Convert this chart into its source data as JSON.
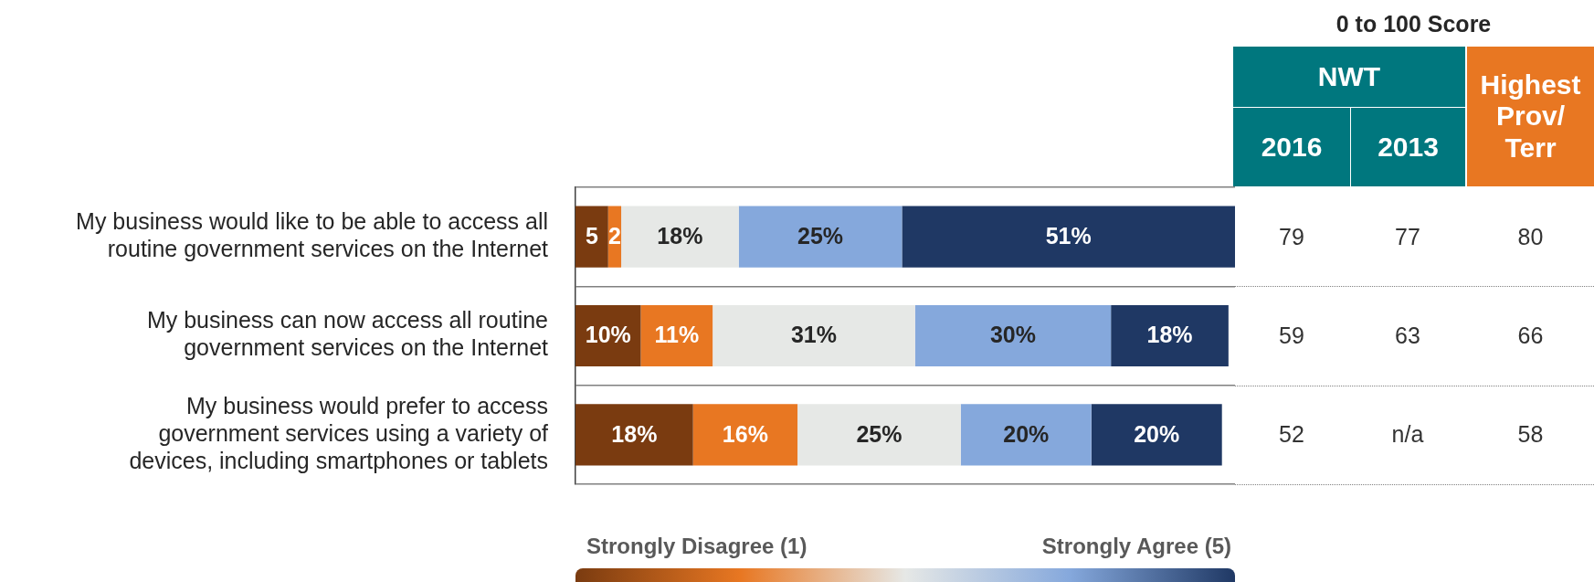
{
  "chart_data": [
    {
      "type": "bar",
      "orientation": "horizontal",
      "stacked": true,
      "legend": false,
      "grid": "y",
      "tick_labels": "y",
      "xlim": [
        0,
        101
      ],
      "categories": [
        "My business would like to be able to access all routine government services on the Internet",
        "My business can now access all routine government services on the Internet",
        "My business would prefer to access government services using a variety of devices, including smartphones or tablets"
      ],
      "series": [
        {
          "color": "#7a3b10",
          "values": [
            5,
            10,
            18
          ],
          "value_labels": [
            "5",
            "10%",
            "18%"
          ]
        },
        {
          "color": "#e87722",
          "values": [
            2,
            11,
            16
          ],
          "value_labels": [
            "2",
            "11%",
            "16%"
          ]
        },
        {
          "color": "#e6e8e6",
          "values": [
            18,
            31,
            25
          ],
          "value_labels": [
            "18%",
            "31%",
            "25%"
          ]
        },
        {
          "color": "#85a8dc",
          "values": [
            25,
            30,
            20
          ],
          "value_labels": [
            "25%",
            "30%",
            "20%"
          ]
        },
        {
          "color": "#1f3864",
          "values": [
            51,
            18,
            20
          ],
          "value_labels": [
            "51%",
            "18%",
            "20%"
          ]
        }
      ],
      "annotations": [
        "Strongly Disagree (1)",
        "Strongly Agree (5)"
      ]
    },
    {
      "type": "other",
      "title": "0 to 100 Score",
      "categories": [
        "NWT",
        "2016",
        "2013",
        "Highest Prov/ Terr"
      ],
      "annotations": [
        "79",
        "77",
        "80",
        "59",
        "63",
        "66",
        "52",
        "n/a",
        "58"
      ]
    }
  ]
}
